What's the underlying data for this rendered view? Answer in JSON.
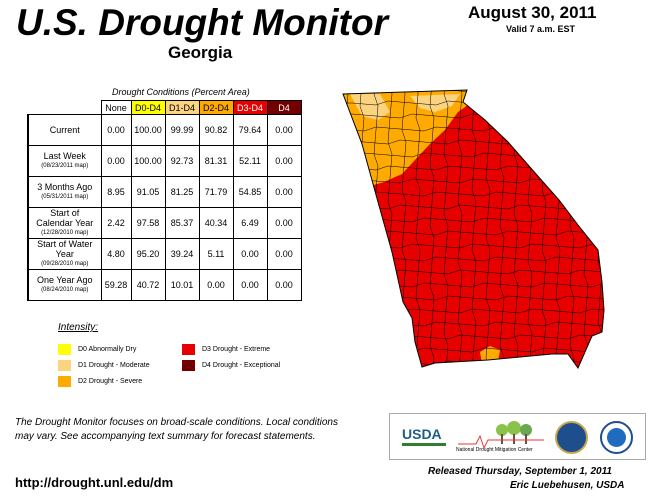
{
  "header": {
    "title": "U.S. Drought Monitor",
    "state": "Georgia",
    "date": "August 30, 2011",
    "valid": "Valid 7 a.m. EST"
  },
  "table": {
    "caption": "Drought Conditions (Percent Area)",
    "columns": [
      "None",
      "D0-D4",
      "D1-D4",
      "D2-D4",
      "D3-D4",
      "D4"
    ],
    "rows": [
      {
        "label": "Current",
        "sub": "",
        "values": [
          "0.00",
          "100.00",
          "99.99",
          "90.82",
          "79.64",
          "0.00"
        ]
      },
      {
        "label": "Last Week",
        "sub": "(08/23/2011 map)",
        "values": [
          "0.00",
          "100.00",
          "92.73",
          "81.31",
          "52.11",
          "0.00"
        ]
      },
      {
        "label": "3 Months Ago",
        "sub": "(05/31/2011 map)",
        "values": [
          "8.95",
          "91.05",
          "81.25",
          "71.79",
          "54.85",
          "0.00"
        ]
      },
      {
        "label": "Start of Calendar Year",
        "sub": "(12/28/2010 map)",
        "values": [
          "2.42",
          "97.58",
          "85.37",
          "40.34",
          "6.49",
          "0.00"
        ]
      },
      {
        "label": "Start of Water Year",
        "sub": "(09/28/2010 map)",
        "values": [
          "4.80",
          "95.20",
          "39.24",
          "5.11",
          "0.00",
          "0.00"
        ]
      },
      {
        "label": "One Year Ago",
        "sub": "(08/24/2010 map)",
        "values": [
          "59.28",
          "40.72",
          "10.01",
          "0.00",
          "0.00",
          "0.00"
        ]
      }
    ]
  },
  "legend": {
    "title": "Intensity:",
    "items": [
      {
        "label": "D0 Abnormally Dry",
        "color": "#ffff00"
      },
      {
        "label": "D1 Drought - Moderate",
        "color": "#fcd37f"
      },
      {
        "label": "D2 Drought - Severe",
        "color": "#ffaa00"
      },
      {
        "label": "D3 Drought - Extreme",
        "color": "#e60000"
      },
      {
        "label": "D4 Drought - Exceptional",
        "color": "#730000"
      }
    ]
  },
  "map": {
    "region": "Georgia",
    "colors": {
      "d2": "#ffaa00",
      "d3": "#e60000",
      "d1": "#fcd37f"
    }
  },
  "note": "The Drought Monitor focuses on broad-scale conditions. Local conditions may vary. See accompanying text summary for forecast statements.",
  "url": "http://drought.unl.edu/dm",
  "logos": {
    "usda": "USDA",
    "ndmc": "National Drought Mitigation Center"
  },
  "footer": {
    "released": "Released Thursday, September 1, 2011",
    "author": "Eric Luebehusen, USDA"
  }
}
